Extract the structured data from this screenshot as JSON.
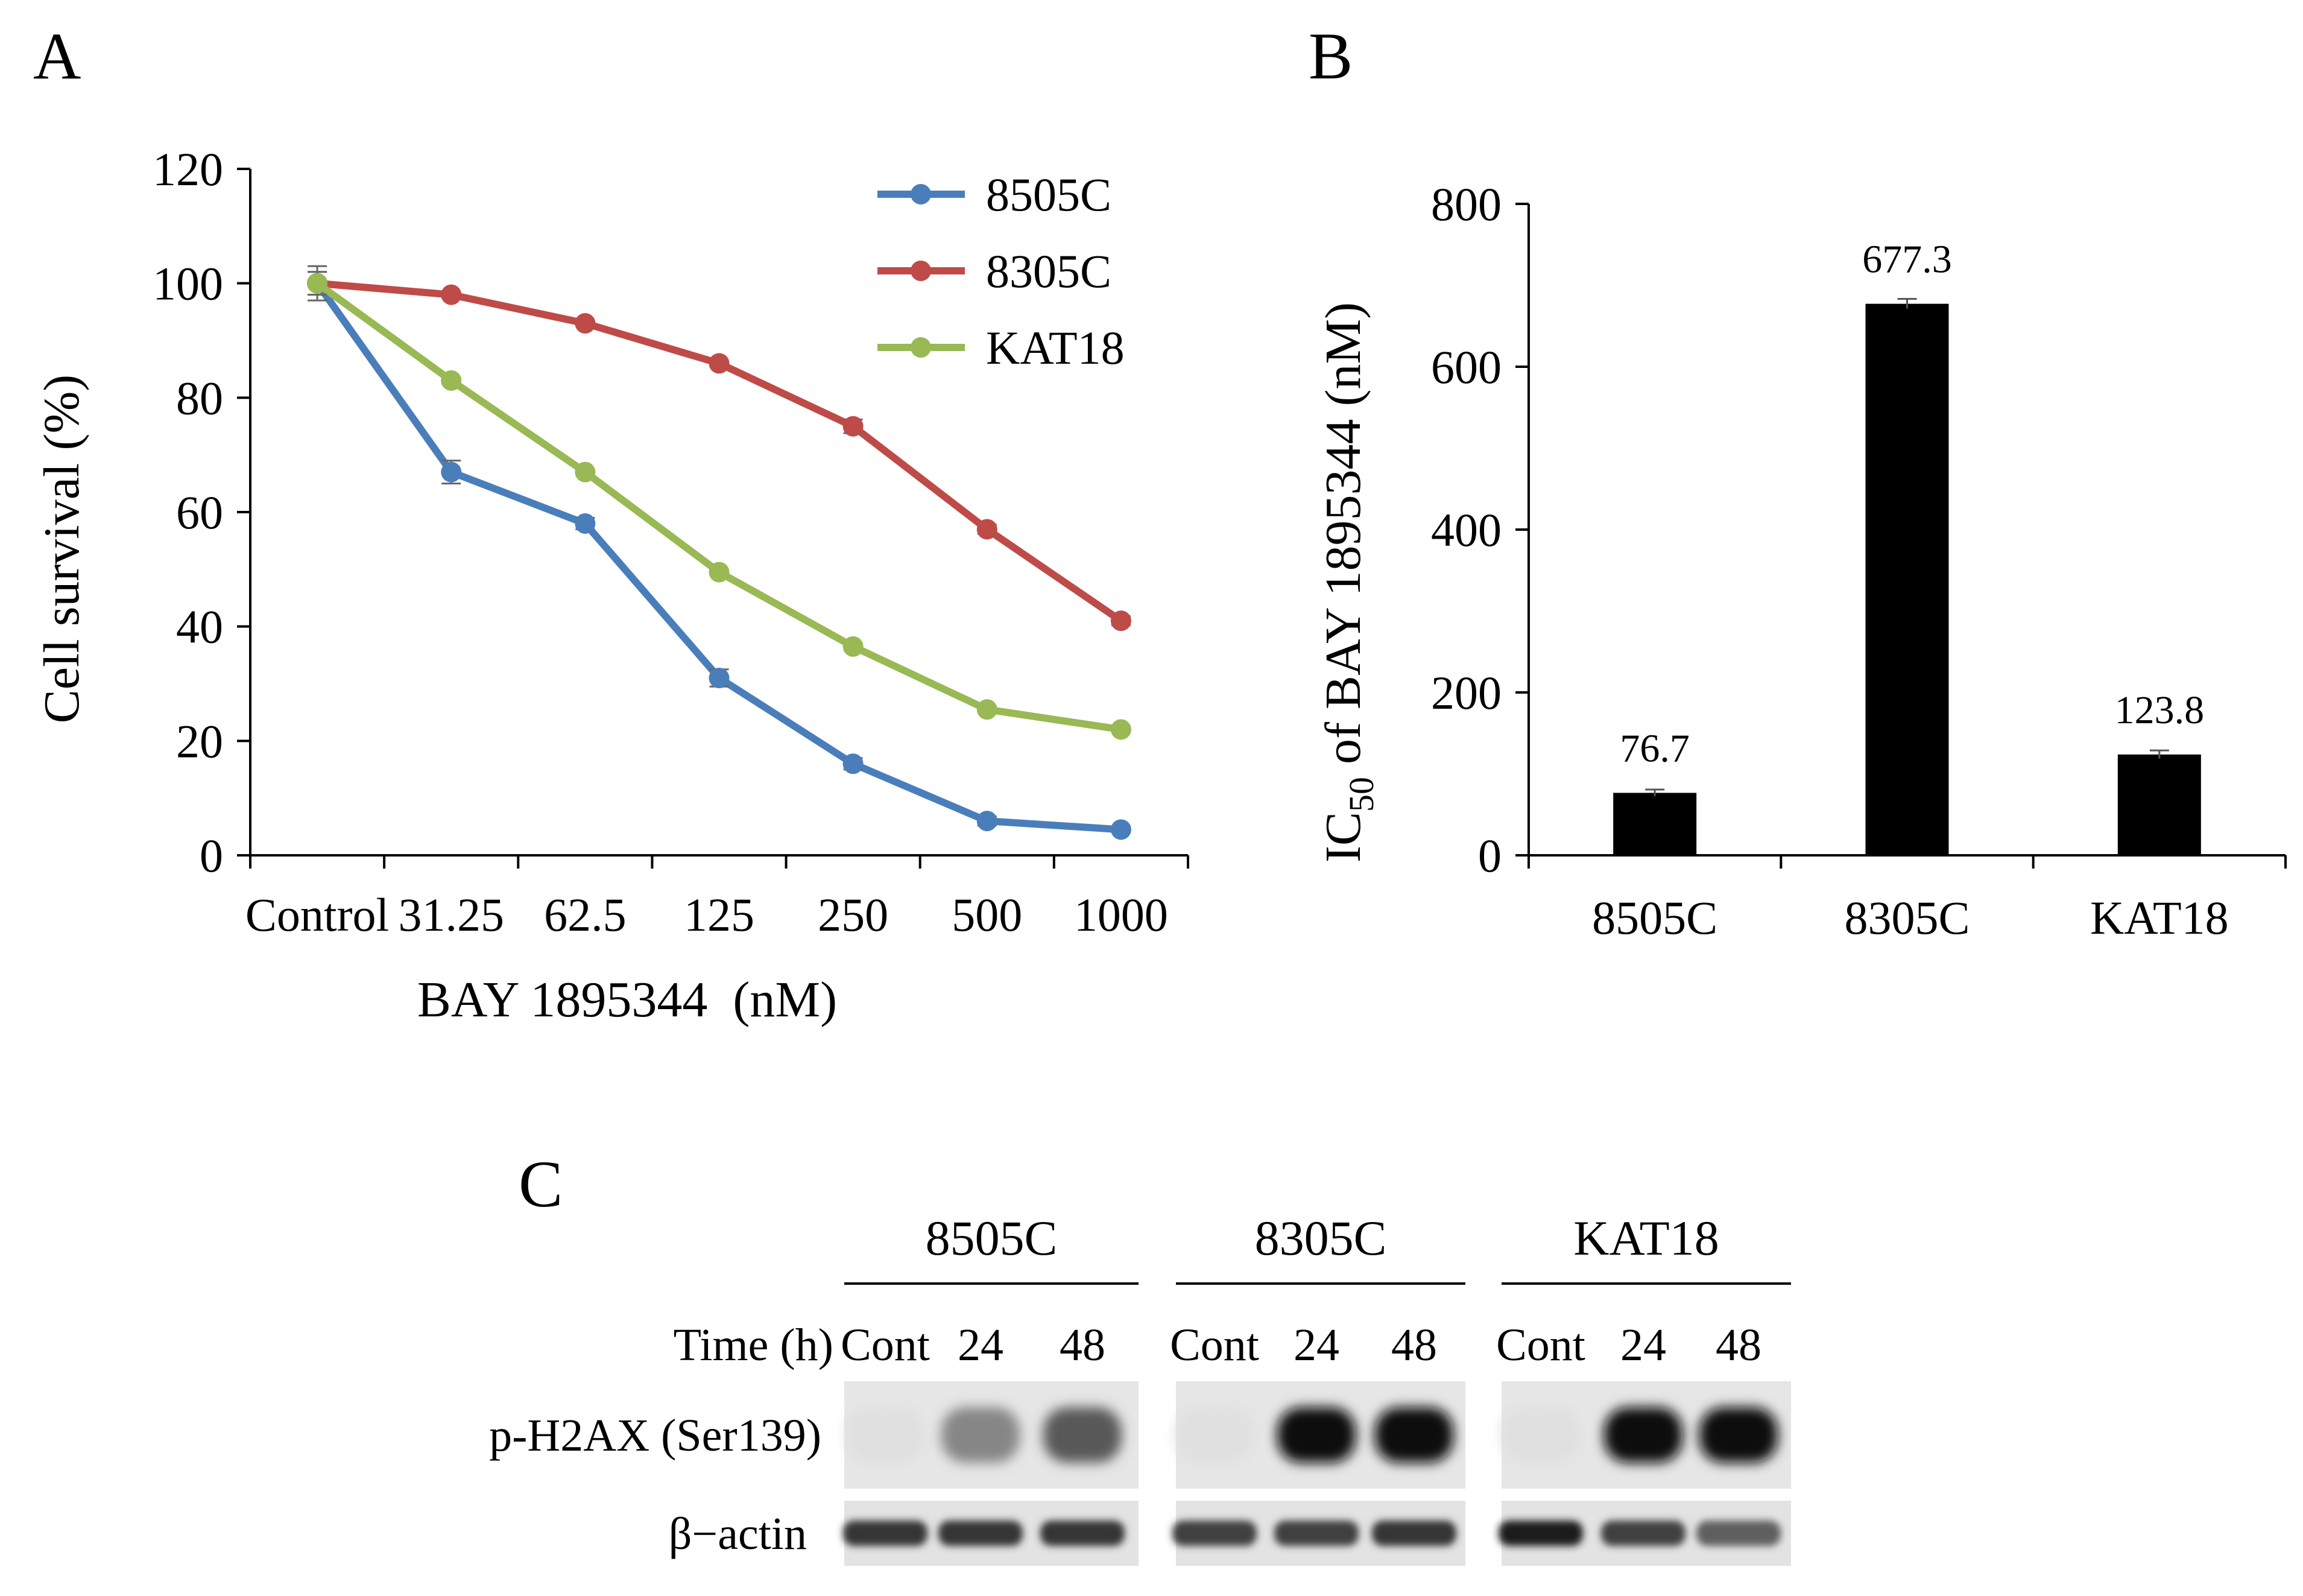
{
  "chart_data": [
    {
      "panel": "A",
      "type": "line",
      "categories": [
        "Control",
        "31.25",
        "62.5",
        "125",
        "250",
        "500",
        "1000"
      ],
      "xlabel": "BAY 1895344  (nM)",
      "ylabel": "Cell survival (%)",
      "ylim": [
        0,
        120
      ],
      "yticks": [
        "0",
        "20",
        "40",
        "60",
        "80",
        "100",
        "120"
      ],
      "legend_position": "top-right",
      "series": [
        {
          "name": "8505C",
          "color": "#4a7ebb",
          "values": [
            100,
            67,
            58,
            31,
            16,
            6,
            4.5
          ],
          "errors": [
            3,
            2,
            1,
            1.5,
            1,
            0.8,
            0.5
          ]
        },
        {
          "name": "8305C",
          "color": "#be4b48",
          "values": [
            100,
            98,
            93,
            86,
            75,
            57,
            41
          ],
          "errors": [
            2,
            0.5,
            0.5,
            0.5,
            1.2,
            0.8,
            0.8
          ]
        },
        {
          "name": "KAT18",
          "color": "#98b954",
          "values": [
            100,
            83,
            67,
            49.5,
            36.5,
            25.5,
            22
          ],
          "errors": [
            2,
            0.5,
            0.5,
            0.5,
            0.5,
            0.5,
            0.5
          ]
        }
      ]
    },
    {
      "panel": "B",
      "type": "bar",
      "categories": [
        "8505C",
        "8305C",
        "KAT18"
      ],
      "values": [
        76.7,
        677.3,
        123.8
      ],
      "value_labels": [
        "76.7",
        "677.3",
        "123.8"
      ],
      "errors": [
        4,
        6,
        5
      ],
      "ylabel_main": "IC",
      "ylabel_sub": "50",
      "ylabel_rest": " of BAY 1895344 (nM)",
      "ylim": [
        0,
        800
      ],
      "yticks": [
        "0",
        "200",
        "400",
        "600",
        "800"
      ],
      "bar_color": "#000000"
    }
  ],
  "blot": {
    "panel": "C",
    "cell_lines": [
      "8505C",
      "8305C",
      "KAT18"
    ],
    "time_label": "Time (h)",
    "timepoints": [
      "Cont",
      "24",
      "48"
    ],
    "rows": [
      "p-H2AX (Ser139)",
      "β−actin"
    ],
    "ph2ax_intensity": [
      [
        0.05,
        0.45,
        0.65
      ],
      [
        0.05,
        1.0,
        1.0
      ],
      [
        0.05,
        1.0,
        1.0
      ]
    ],
    "actin_intensity": [
      [
        0.85,
        0.85,
        0.85
      ],
      [
        0.8,
        0.8,
        0.85
      ],
      [
        0.95,
        0.8,
        0.65
      ]
    ]
  },
  "panel_labels": {
    "a": "A",
    "b": "B",
    "c": "C"
  }
}
